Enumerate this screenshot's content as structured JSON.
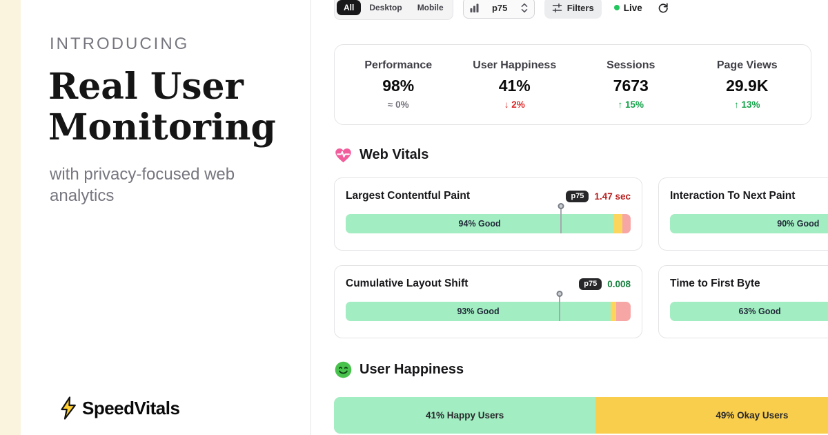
{
  "theme": {
    "background_cream": "#FAF3DE",
    "panel_white": "#FFFFFF",
    "border_gray": "#E4E4E7",
    "good_green": "#A3EDC2",
    "okay_yellow": "#FBD55C",
    "poor_red": "#F7A6A6",
    "happy_okay_gold": "#F9CE4D",
    "trend_up_green": "#16A34A",
    "trend_down_red": "#DC2626",
    "neutral_gray": "#71717A",
    "value_red": "#B91C1C",
    "value_green": "#15803D",
    "live_green": "#22C55E",
    "badge_dark": "#27272A",
    "brand_gold": "#FFCE31",
    "heart_pink": "#F25D9C",
    "smiley_green": "#49C24D"
  },
  "left_panel": {
    "kicker": "INTRODUCING",
    "title": "Real User Monitoring",
    "subtitle": "with privacy-focused web analytics",
    "brand": "SpeedVitals"
  },
  "toolbar": {
    "segment_all": "All",
    "segment_desktop": "Desktop",
    "segment_mobile": "Mobile",
    "selected_segment": "All",
    "percentile": "p75",
    "filters": "Filters",
    "live": "Live"
  },
  "stats": {
    "performance": {
      "label": "Performance",
      "value": "98%",
      "delta": "≈ 0%"
    },
    "user_happiness": {
      "label": "User Happiness",
      "value": "41%",
      "delta": "↓ 2%"
    },
    "sessions": {
      "label": "Sessions",
      "value": "7673",
      "delta": "↑ 15%"
    },
    "page_views": {
      "label": "Page Views",
      "value": "29.9K",
      "delta": "↑ 13%"
    }
  },
  "web_vitals": {
    "section_title": "Web Vitals",
    "lcp": {
      "title": "Largest Contentful Paint",
      "badge": "p75",
      "value": "1.47 sec",
      "bar": {
        "good_label": "94% Good",
        "good_pct": 94,
        "okay_pct": 3,
        "poor_pct": 3,
        "marker_pct": 75.5
      }
    },
    "inp": {
      "title": "Interaction To Next Paint",
      "bar": {
        "good_label": "90% Good",
        "good_pct": 90
      }
    },
    "cls": {
      "title": "Cumulative Layout Shift",
      "badge": "p75",
      "value": "0.008",
      "bar": {
        "good_label": "93% Good",
        "good_pct": 93,
        "okay_pct": 2,
        "poor_pct": 5,
        "marker_pct": 75
      }
    },
    "ttfb": {
      "title": "Time to First Byte",
      "bar": {
        "good_label": "63% Good",
        "good_pct": 63
      }
    }
  },
  "user_happiness": {
    "section_title": "User Happiness",
    "happy": {
      "label": "41% Happy Users",
      "pct": 41
    },
    "okay": {
      "label": "49% Okay Users",
      "pct": 49
    }
  }
}
